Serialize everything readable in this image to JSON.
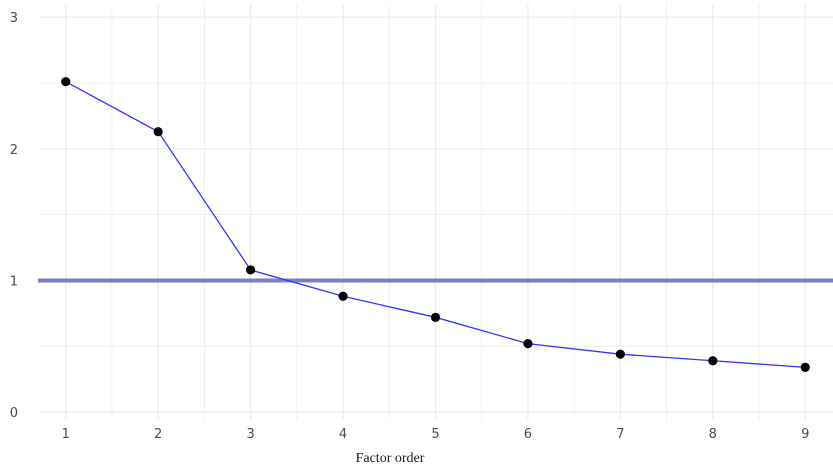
{
  "chart_data": {
    "type": "line",
    "title": "",
    "xlabel": "Factor order",
    "ylabel": "",
    "x": [
      1,
      2,
      3,
      4,
      5,
      6,
      7,
      8,
      9
    ],
    "series": [
      {
        "values": [
          2.51,
          2.13,
          1.08,
          0.88,
          0.72,
          0.52,
          0.44,
          0.39,
          0.34
        ],
        "color": "#3333ff"
      }
    ],
    "reference_line": {
      "y": 1,
      "color": "#7b7fc4"
    },
    "xlim": [
      0.7,
      9.3
    ],
    "ylim": [
      -0.06,
      3.1
    ],
    "x_ticks": [
      1,
      2,
      3,
      4,
      5,
      6,
      7,
      8,
      9
    ],
    "y_ticks": [
      0,
      1,
      2,
      3
    ],
    "grid": true,
    "grid_color": "#ebebeb",
    "point_color": "#000000",
    "legend": "none"
  }
}
